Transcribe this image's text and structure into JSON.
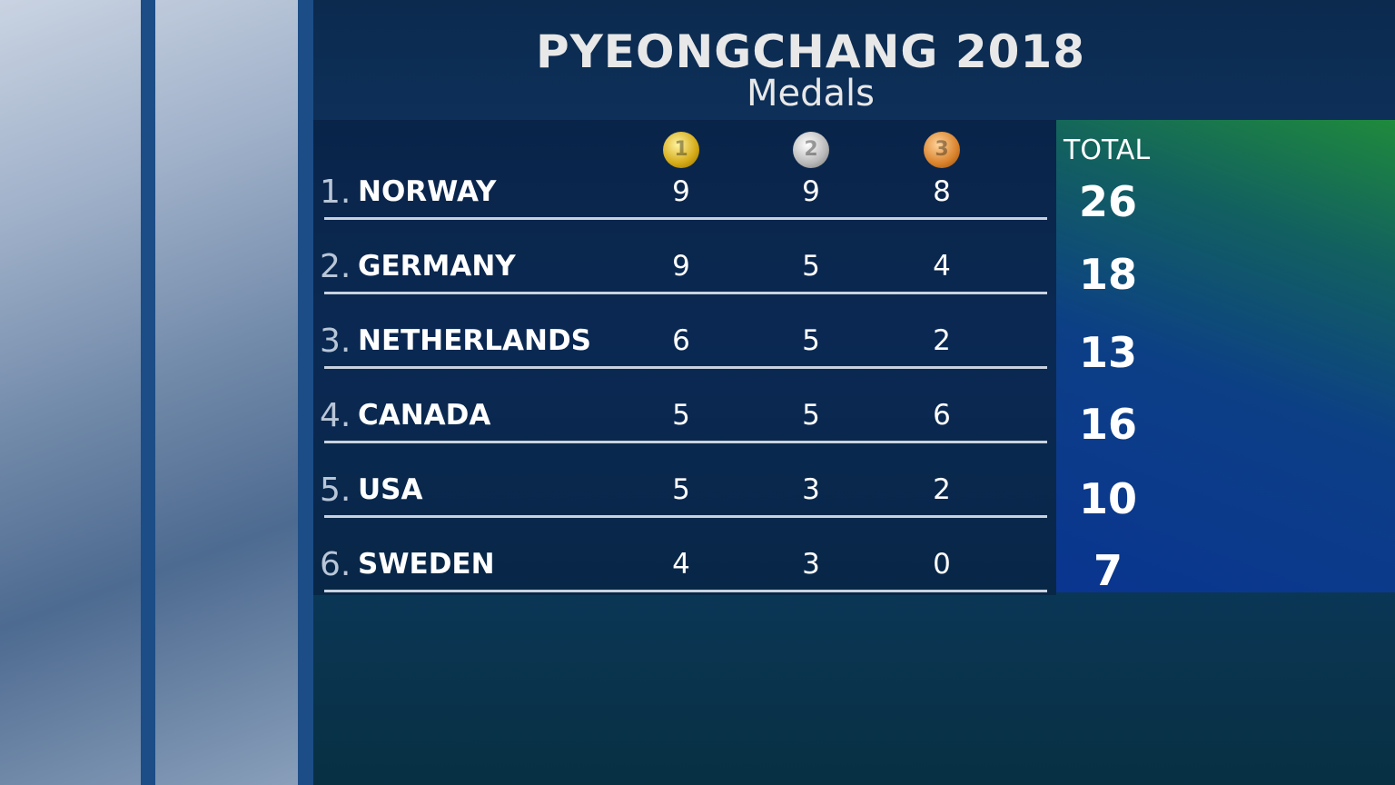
{
  "header": {
    "title": "PYEONGCHANG 2018",
    "subtitle": "Medals"
  },
  "table": {
    "medal_icons": [
      "1",
      "2",
      "3"
    ],
    "total_label": "TOTAL",
    "rows": [
      {
        "rank": "1.",
        "country": "NORWAY",
        "gold": 9,
        "silver": 9,
        "bronze": 8,
        "total": 26
      },
      {
        "rank": "2.",
        "country": "GERMANY",
        "gold": 9,
        "silver": 5,
        "bronze": 4,
        "total": 18
      },
      {
        "rank": "3.",
        "country": "NETHERLANDS",
        "gold": 6,
        "silver": 5,
        "bronze": 2,
        "total": 13
      },
      {
        "rank": "4.",
        "country": "CANADA",
        "gold": 5,
        "silver": 5,
        "bronze": 6,
        "total": 16
      },
      {
        "rank": "5.",
        "country": "USA",
        "gold": 5,
        "silver": 3,
        "bronze": 2,
        "total": 10
      },
      {
        "rank": "6.",
        "country": "SWEDEN",
        "gold": 4,
        "silver": 3,
        "bronze": 0,
        "total": 7
      }
    ]
  }
}
